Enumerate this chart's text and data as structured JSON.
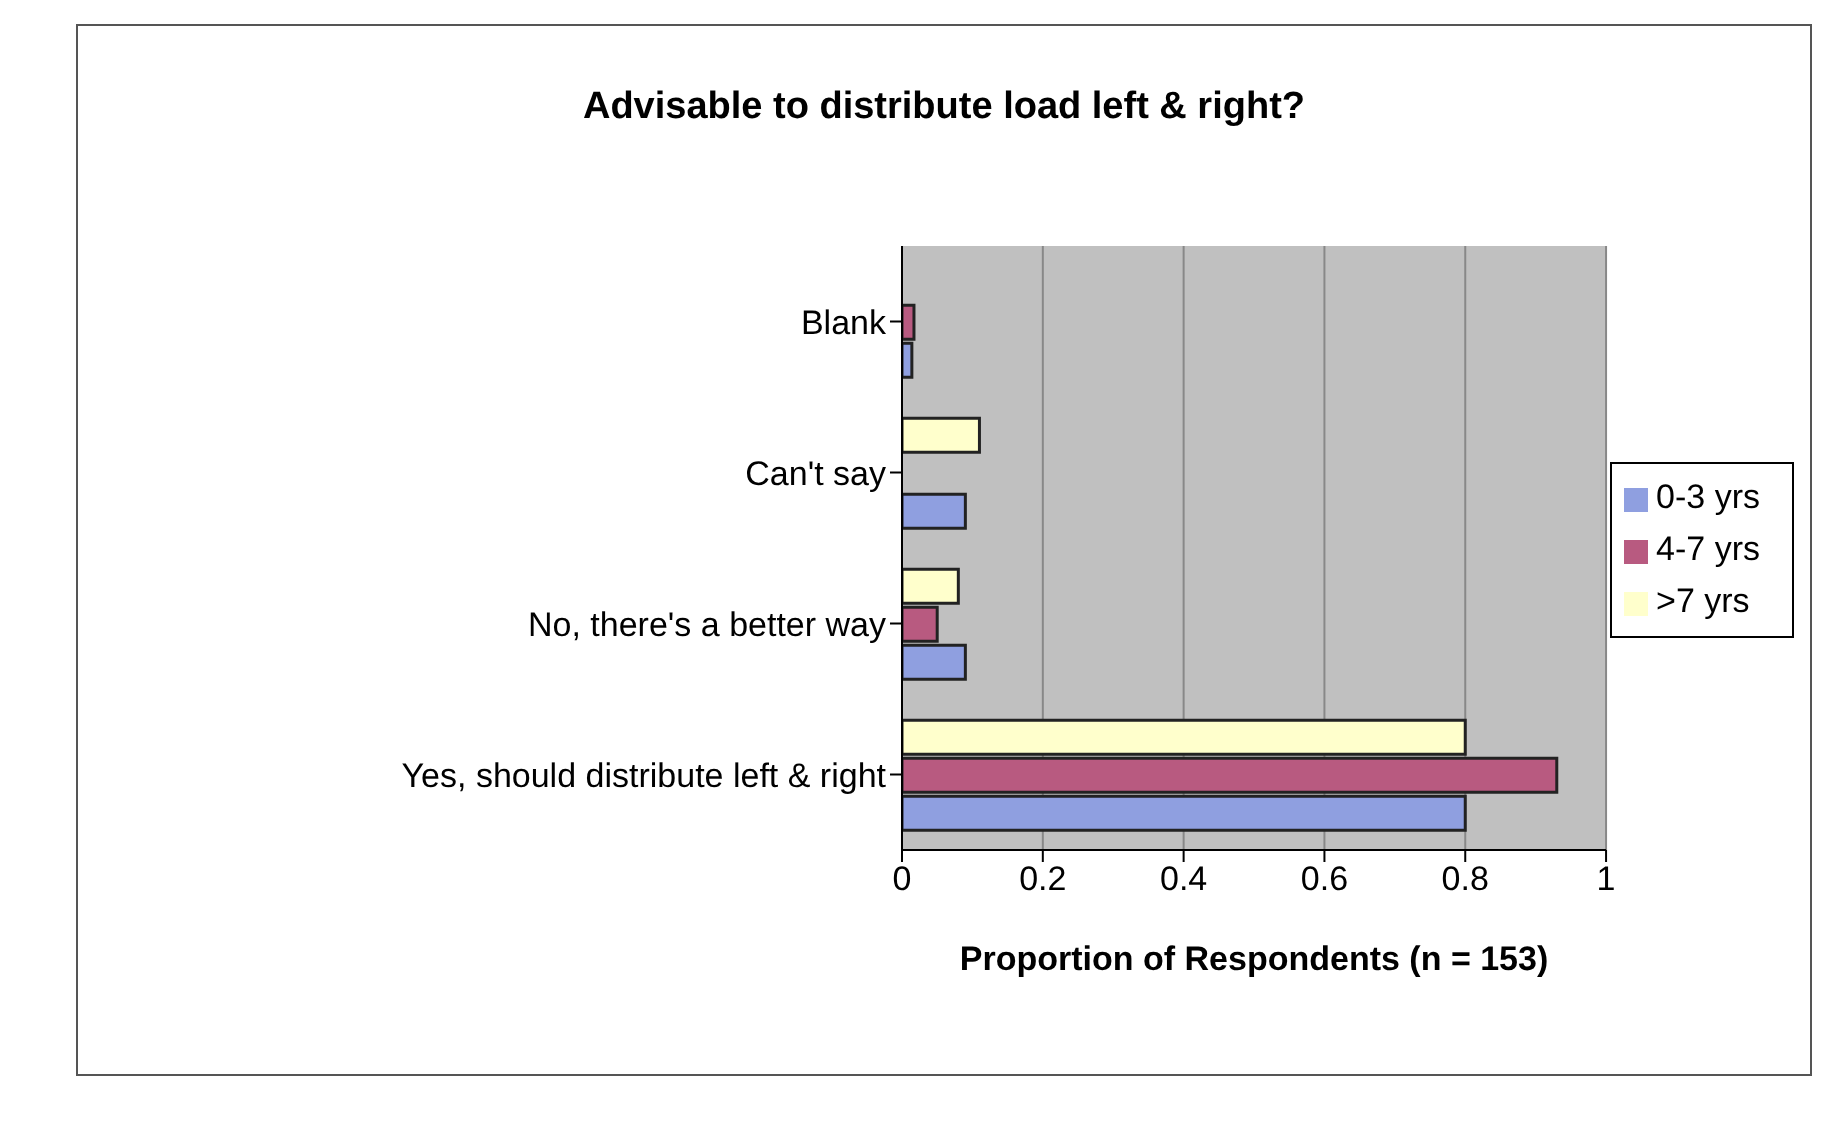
{
  "chart_data": {
    "type": "bar",
    "orientation": "horizontal",
    "title": "Advisable to distribute load left & right?",
    "xlabel": "Proportion of Respondents (n = 153)",
    "categories": [
      "Blank",
      "Can't say",
      "No, there's a better way",
      "Yes, should distribute left & right"
    ],
    "series": [
      {
        "name": ">7 yrs",
        "color": "#ffffcc",
        "values": [
          0,
          0.11,
          0.08,
          0.8
        ]
      },
      {
        "name": "4-7 yrs",
        "color": "#b85a80",
        "values": [
          0.017,
          0,
          0.05,
          0.93
        ]
      },
      {
        "name": "0-3 yrs",
        "color": "#8f9fe0",
        "values": [
          0.014,
          0.09,
          0.09,
          0.8
        ]
      }
    ],
    "xlim": [
      0,
      1
    ],
    "xticks": [
      0,
      0.2,
      0.4,
      0.6,
      0.8,
      1
    ],
    "grid": "x",
    "legend": "right"
  }
}
